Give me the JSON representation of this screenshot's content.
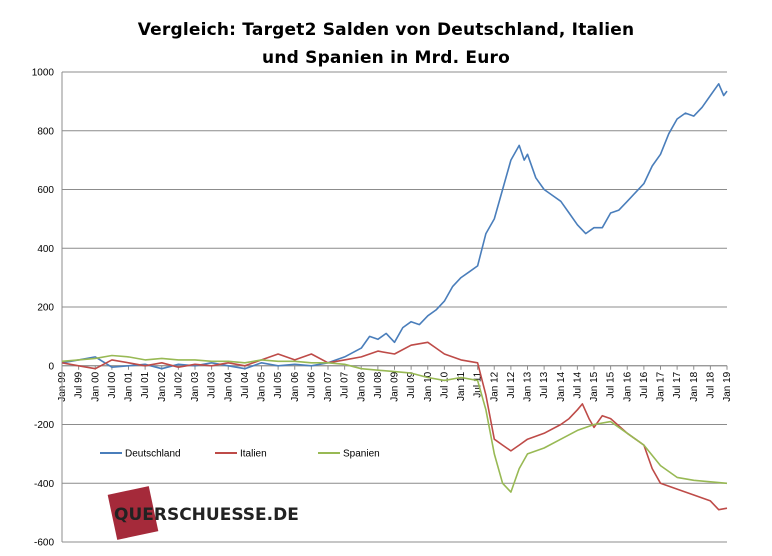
{
  "chart_data": {
    "type": "line",
    "title_line1": "Vergleich: Target2 Salden von Deutschland, Italien",
    "title_line2": "und Spanien in Mrd. Euro",
    "ylim": [
      -600,
      1000
    ],
    "y_ticks": [
      "1000",
      "800",
      "600",
      "400",
      "200",
      "0",
      "-200",
      "-400",
      "-600"
    ],
    "x_range": [
      1999.0,
      2019.0
    ],
    "x_tick_labels": [
      "Jan 99",
      "Jul 99",
      "Jan 00",
      "Jul 00",
      "Jan 01",
      "Jul 01",
      "Jan 02",
      "Jul 02",
      "Jan 03",
      "Jul 03",
      "Jan 04",
      "Jul 04",
      "Jan 05",
      "Jul 05",
      "Jan 06",
      "Jul 06",
      "Jan 07",
      "Jul 07",
      "Jan 08",
      "Jul 08",
      "Jan 09",
      "Jul 09",
      "Jan 10",
      "Jul 10",
      "Jan 11",
      "Jul 11",
      "Jan 12",
      "Jul 12",
      "Jan 13",
      "Jul 13",
      "Jan 14",
      "Jul 14",
      "Jan 15",
      "Jul 15",
      "Jan 16",
      "Jul 16",
      "Jan 17",
      "Jul 17",
      "Jan 18",
      "Jul 18",
      "Jan 19"
    ],
    "grid": true,
    "legend_position": "bottom-left",
    "series": [
      {
        "name": "Deutschland",
        "color": "#4a7ebb",
        "points": [
          [
            1999.0,
            10
          ],
          [
            1999.5,
            20
          ],
          [
            2000.0,
            30
          ],
          [
            2000.5,
            -5
          ],
          [
            2001.0,
            0
          ],
          [
            2001.5,
            5
          ],
          [
            2002.0,
            -10
          ],
          [
            2002.5,
            5
          ],
          [
            2003.0,
            0
          ],
          [
            2003.5,
            10
          ],
          [
            2004.0,
            0
          ],
          [
            2004.5,
            -10
          ],
          [
            2005.0,
            10
          ],
          [
            2005.5,
            0
          ],
          [
            2006.0,
            5
          ],
          [
            2006.5,
            0
          ],
          [
            2007.0,
            10
          ],
          [
            2007.5,
            30
          ],
          [
            2008.0,
            60
          ],
          [
            2008.25,
            100
          ],
          [
            2008.5,
            90
          ],
          [
            2008.75,
            110
          ],
          [
            2009.0,
            80
          ],
          [
            2009.25,
            130
          ],
          [
            2009.5,
            150
          ],
          [
            2009.75,
            140
          ],
          [
            2010.0,
            170
          ],
          [
            2010.25,
            190
          ],
          [
            2010.5,
            220
          ],
          [
            2010.75,
            270
          ],
          [
            2011.0,
            300
          ],
          [
            2011.25,
            320
          ],
          [
            2011.5,
            340
          ],
          [
            2011.75,
            450
          ],
          [
            2012.0,
            500
          ],
          [
            2012.25,
            600
          ],
          [
            2012.5,
            700
          ],
          [
            2012.75,
            750
          ],
          [
            2012.9,
            700
          ],
          [
            2013.0,
            720
          ],
          [
            2013.25,
            640
          ],
          [
            2013.5,
            600
          ],
          [
            2013.75,
            580
          ],
          [
            2014.0,
            560
          ],
          [
            2014.25,
            520
          ],
          [
            2014.5,
            480
          ],
          [
            2014.75,
            450
          ],
          [
            2015.0,
            470
          ],
          [
            2015.25,
            470
          ],
          [
            2015.5,
            520
          ],
          [
            2015.75,
            530
          ],
          [
            2016.0,
            560
          ],
          [
            2016.25,
            590
          ],
          [
            2016.5,
            620
          ],
          [
            2016.75,
            680
          ],
          [
            2017.0,
            720
          ],
          [
            2017.25,
            790
          ],
          [
            2017.5,
            840
          ],
          [
            2017.75,
            860
          ],
          [
            2018.0,
            850
          ],
          [
            2018.25,
            880
          ],
          [
            2018.5,
            920
          ],
          [
            2018.75,
            960
          ],
          [
            2018.9,
            920
          ],
          [
            2019.0,
            935
          ]
        ]
      },
      {
        "name": "Italien",
        "color": "#be4b48",
        "points": [
          [
            1999.0,
            10
          ],
          [
            1999.5,
            0
          ],
          [
            2000.0,
            -10
          ],
          [
            2000.5,
            20
          ],
          [
            2001.0,
            10
          ],
          [
            2001.5,
            0
          ],
          [
            2002.0,
            10
          ],
          [
            2002.5,
            -5
          ],
          [
            2003.0,
            5
          ],
          [
            2003.5,
            0
          ],
          [
            2004.0,
            10
          ],
          [
            2004.5,
            0
          ],
          [
            2005.0,
            20
          ],
          [
            2005.5,
            40
          ],
          [
            2006.0,
            20
          ],
          [
            2006.5,
            40
          ],
          [
            2007.0,
            10
          ],
          [
            2007.5,
            20
          ],
          [
            2008.0,
            30
          ],
          [
            2008.5,
            50
          ],
          [
            2009.0,
            40
          ],
          [
            2009.5,
            70
          ],
          [
            2010.0,
            80
          ],
          [
            2010.25,
            60
          ],
          [
            2010.5,
            40
          ],
          [
            2011.0,
            20
          ],
          [
            2011.5,
            10
          ],
          [
            2011.75,
            -100
          ],
          [
            2012.0,
            -250
          ],
          [
            2012.25,
            -270
          ],
          [
            2012.5,
            -290
          ],
          [
            2012.75,
            -270
          ],
          [
            2013.0,
            -250
          ],
          [
            2013.5,
            -230
          ],
          [
            2014.0,
            -200
          ],
          [
            2014.25,
            -180
          ],
          [
            2014.5,
            -150
          ],
          [
            2014.65,
            -130
          ],
          [
            2014.85,
            -180
          ],
          [
            2015.0,
            -210
          ],
          [
            2015.25,
            -170
          ],
          [
            2015.5,
            -180
          ],
          [
            2016.0,
            -230
          ],
          [
            2016.5,
            -270
          ],
          [
            2016.75,
            -350
          ],
          [
            2017.0,
            -400
          ],
          [
            2017.5,
            -420
          ],
          [
            2018.0,
            -440
          ],
          [
            2018.5,
            -460
          ],
          [
            2018.75,
            -490
          ],
          [
            2019.0,
            -485
          ]
        ]
      },
      {
        "name": "Spanien",
        "color": "#98b954",
        "points": [
          [
            1999.0,
            15
          ],
          [
            1999.5,
            20
          ],
          [
            2000.0,
            25
          ],
          [
            2000.5,
            35
          ],
          [
            2001.0,
            30
          ],
          [
            2001.5,
            20
          ],
          [
            2002.0,
            25
          ],
          [
            2002.5,
            20
          ],
          [
            2003.0,
            20
          ],
          [
            2003.5,
            15
          ],
          [
            2004.0,
            15
          ],
          [
            2004.5,
            10
          ],
          [
            2005.0,
            20
          ],
          [
            2005.5,
            15
          ],
          [
            2006.0,
            15
          ],
          [
            2006.5,
            10
          ],
          [
            2007.0,
            10
          ],
          [
            2007.5,
            5
          ],
          [
            2008.0,
            -10
          ],
          [
            2008.5,
            -15
          ],
          [
            2009.0,
            -20
          ],
          [
            2009.5,
            -25
          ],
          [
            2010.0,
            -40
          ],
          [
            2010.5,
            -50
          ],
          [
            2011.0,
            -40
          ],
          [
            2011.5,
            -50
          ],
          [
            2011.75,
            -150
          ],
          [
            2012.0,
            -300
          ],
          [
            2012.25,
            -400
          ],
          [
            2012.5,
            -430
          ],
          [
            2012.75,
            -350
          ],
          [
            2013.0,
            -300
          ],
          [
            2013.5,
            -280
          ],
          [
            2014.0,
            -250
          ],
          [
            2014.5,
            -220
          ],
          [
            2015.0,
            -200
          ],
          [
            2015.5,
            -190
          ],
          [
            2016.0,
            -230
          ],
          [
            2016.5,
            -270
          ],
          [
            2017.0,
            -340
          ],
          [
            2017.5,
            -380
          ],
          [
            2018.0,
            -390
          ],
          [
            2018.5,
            -395
          ],
          [
            2019.0,
            -400
          ]
        ]
      }
    ]
  },
  "logo": {
    "text": "QUERSCHUESSE.DE",
    "box_color": "#a52a3a"
  }
}
